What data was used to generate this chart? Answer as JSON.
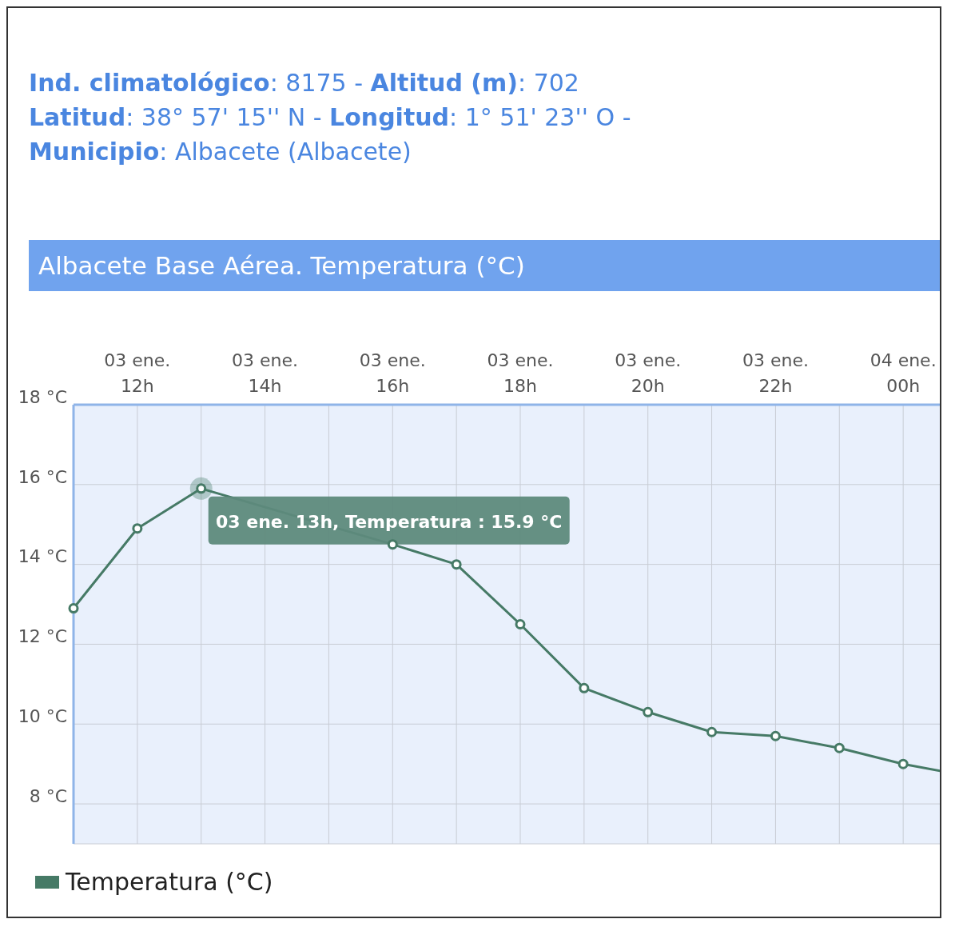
{
  "chart_data": {
    "type": "line",
    "title": "Albacete Base Aérea. Temperatura (°C)",
    "annotations": [
      "Ind. climatológico: 8175 - Altitud (m): 702",
      "Latitud: 38° 57' 15'' N - Longitud: 1° 51' 23'' O -",
      "Municipio: Albacete (Albacete)",
      "03 ene. 13h, Temperatura : 15.9 °C"
    ],
    "categories": [
      null,
      "03 ene. 12h",
      null,
      "03 ene. 14h",
      null,
      "03 ene. 16h",
      null,
      "03 ene. 18h",
      null,
      "03 ene. 20h",
      null,
      "03 ene. 22h",
      null,
      "04 ene. 00h",
      null
    ],
    "series": [
      {
        "name": "Temperatura (°C)",
        "color": "#467a66",
        "values": [
          12.9,
          14.9,
          15.9,
          null,
          null,
          14.5,
          14.0,
          12.5,
          10.9,
          10.3,
          9.8,
          9.7,
          9.4,
          9.0,
          8.7
        ]
      }
    ],
    "ylim": [
      7,
      18
    ],
    "yticks": [
      {
        "value": 8,
        "label": "8 °C"
      },
      {
        "value": 10,
        "label": "10 °C"
      },
      {
        "value": 12,
        "label": "12 °C"
      },
      {
        "value": 14,
        "label": "14 °C"
      },
      {
        "value": 16,
        "label": "16 °C"
      },
      {
        "value": 18,
        "label": "18 °C"
      }
    ],
    "grid": true,
    "legend": "bottom left",
    "marker": "circle",
    "line_style": "solid"
  }
}
